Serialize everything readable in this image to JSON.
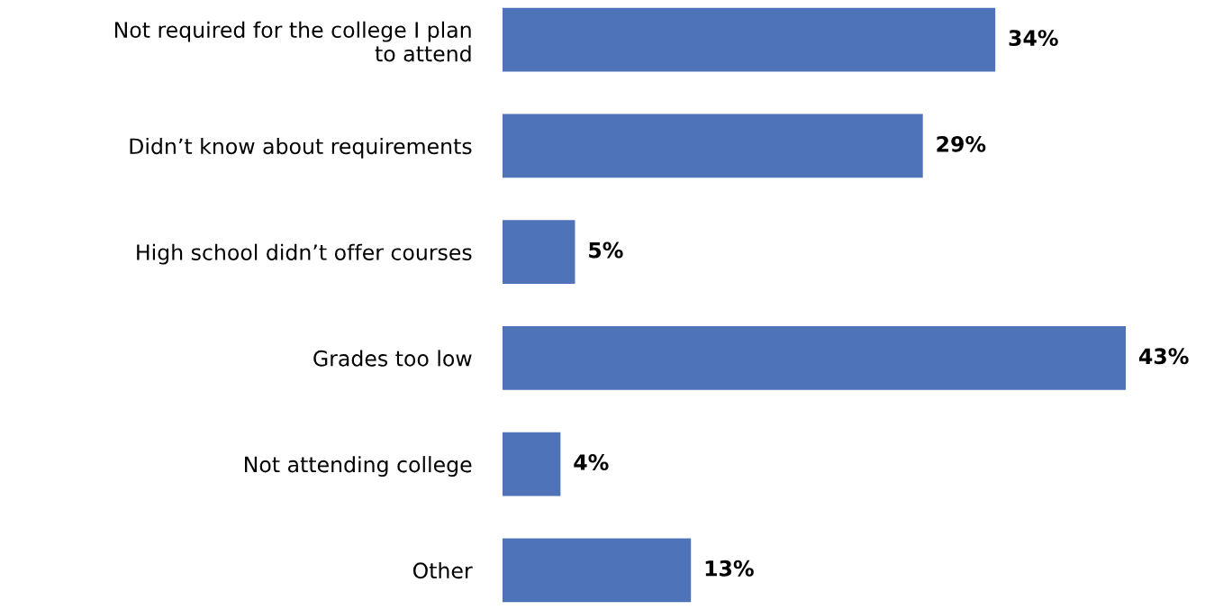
{
  "chart_data": {
    "type": "bar",
    "orientation": "horizontal",
    "categories": [
      "Not required for the college I plan\nto attend",
      "Didn’t know about requirements",
      "High school didn’t offer courses",
      "Grades too low",
      "Not attending college",
      "Other"
    ],
    "values": [
      34,
      29,
      5,
      43,
      4,
      13
    ],
    "value_labels": [
      "34%",
      "29%",
      "5%",
      "43%",
      "4%",
      "13%"
    ],
    "color": "#4f73b8",
    "grid": false,
    "legend": false,
    "tick_labels": "y"
  }
}
